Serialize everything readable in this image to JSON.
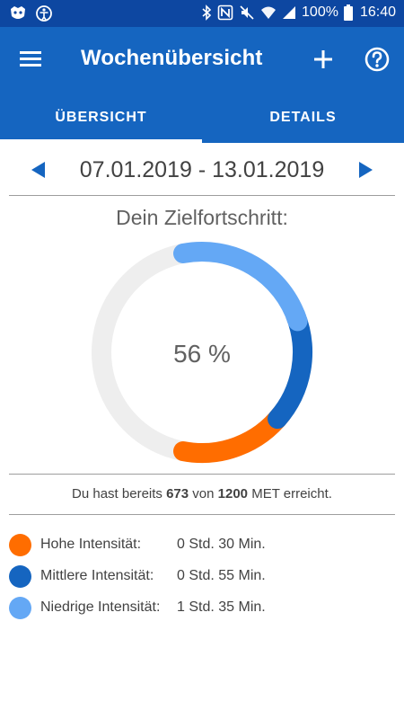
{
  "status_bar": {
    "battery": "100%",
    "time": "16:40",
    "icons": [
      "app-notification-icon",
      "accessibility-icon",
      "bluetooth-icon",
      "nfc-icon",
      "mute-icon",
      "wifi-icon",
      "signal-icon",
      "battery-icon"
    ]
  },
  "app_bar": {
    "title": "Wochenübersicht",
    "icons": [
      "menu-icon",
      "add-icon",
      "help-icon"
    ]
  },
  "tabs": [
    {
      "label": "ÜBERSICHT",
      "selected": true
    },
    {
      "label": "DETAILS",
      "selected": false
    }
  ],
  "week": {
    "range": "07.01.2019 - 13.01.2019",
    "prev_icon": "arrow-left-icon",
    "next_icon": "arrow-right-icon"
  },
  "goal": {
    "title": "Dein Zielfortschritt:",
    "percent_text": "56 %"
  },
  "ring_data": {
    "percent_complete": 56,
    "segments": [
      {
        "name": "Hohe Intensität",
        "share": 0.165,
        "color": "#ff6d00"
      },
      {
        "name": "Mittlere Intensität",
        "share": 0.165,
        "color": "#1565c0"
      },
      {
        "name": "Niedrige Intensität",
        "share": 0.23,
        "color": "#64a8f5"
      }
    ],
    "track_color": "#eeeeee"
  },
  "summary": {
    "prefix": "Du hast bereits",
    "achieved": "673",
    "middle": "von",
    "goal": "1200",
    "suffix": "MET erreicht."
  },
  "legend": [
    {
      "label": "Hohe Intensität:",
      "value": "0 Std. 30 Min.",
      "color": "#ff6d00"
    },
    {
      "label": "Mittlere Intensität:",
      "value": "0 Std. 55 Min.",
      "color": "#1565c0"
    },
    {
      "label": "Niedrige Intensität:",
      "value": "1 Std. 35 Min.",
      "color": "#64a8f5"
    }
  ],
  "colors": {
    "status_bar": "#0d47a1",
    "app_bar": "#1565c0",
    "accent": "#1565c0"
  }
}
